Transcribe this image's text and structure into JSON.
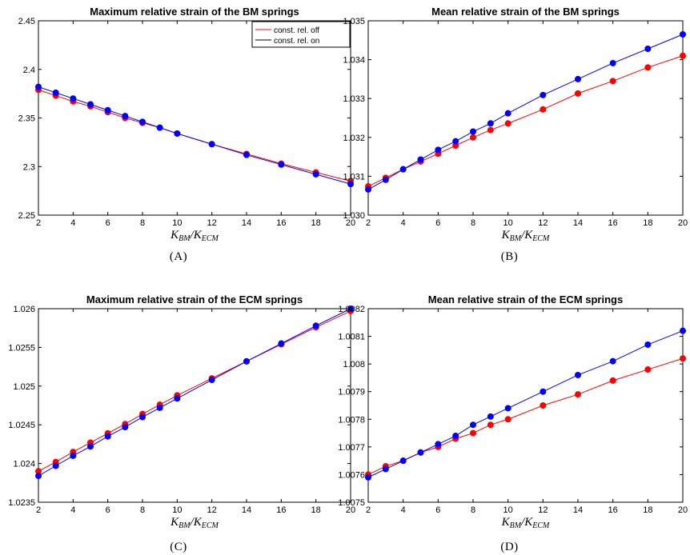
{
  "colors": {
    "off": "#ff0000",
    "on": "#0000ff",
    "legend_on_line": "#000000"
  },
  "chart_data": [
    {
      "type": "line",
      "caption": "(A)",
      "title": "Maximum relative strain of the BM springs",
      "xlabel": "K_BM/K_ECM",
      "x": [
        2,
        3,
        4,
        5,
        6,
        7,
        8,
        9,
        10,
        12,
        14,
        16,
        18,
        20
      ],
      "xlim": [
        2,
        20
      ],
      "ylim": [
        2.25,
        2.45
      ],
      "xticks": [
        "2",
        "4",
        "6",
        "8",
        "10",
        "12",
        "14",
        "16",
        "18",
        "20"
      ],
      "yticks": [
        "2.25",
        "2.3",
        "2.35",
        "2.4",
        "2.45"
      ],
      "legend": {
        "position": "top-right",
        "entries": [
          "const. rel. off",
          "const. rel. on"
        ]
      },
      "series": [
        {
          "name": "const. rel. off",
          "color": "#ff0000",
          "values": [
            2.379,
            2.373,
            2.367,
            2.362,
            2.356,
            2.35,
            2.345,
            2.34,
            2.334,
            2.323,
            2.313,
            2.303,
            2.294,
            2.285
          ]
        },
        {
          "name": "const. rel. on",
          "color": "#0000ff",
          "values": [
            2.382,
            2.376,
            2.37,
            2.364,
            2.358,
            2.352,
            2.346,
            2.34,
            2.334,
            2.323,
            2.312,
            2.302,
            2.292,
            2.282
          ]
        }
      ]
    },
    {
      "type": "line",
      "caption": "(B)",
      "title": "Mean relative strain of the BM springs",
      "xlabel": "K_BM/K_ECM",
      "x": [
        2,
        3,
        4,
        5,
        6,
        7,
        8,
        9,
        10,
        12,
        14,
        16,
        18,
        20
      ],
      "xlim": [
        2,
        20
      ],
      "ylim": [
        1.03,
        1.035
      ],
      "xticks": [
        "2",
        "4",
        "6",
        "8",
        "10",
        "12",
        "14",
        "16",
        "18",
        "20"
      ],
      "yticks": [
        "1.030",
        "1.031",
        "1.032",
        "1.033",
        "1.034",
        "1.035"
      ],
      "series": [
        {
          "name": "const. rel. off",
          "color": "#ff0000",
          "values": [
            1.03074,
            1.03096,
            1.03118,
            1.03138,
            1.03158,
            1.03179,
            1.032,
            1.03219,
            1.03236,
            1.03272,
            1.03313,
            1.03345,
            1.0338,
            1.0341
          ]
        },
        {
          "name": "const. rel. on",
          "color": "#0000ff",
          "values": [
            1.03066,
            1.03091,
            1.03118,
            1.03143,
            1.03168,
            1.0319,
            1.03215,
            1.03236,
            1.03262,
            1.03309,
            1.0335,
            1.03391,
            1.03428,
            1.03465
          ]
        }
      ]
    },
    {
      "type": "line",
      "caption": "(C)",
      "title": "Maximum relative strain of the ECM springs",
      "xlabel": "K_BM/K_ECM",
      "x": [
        2,
        3,
        4,
        5,
        6,
        7,
        8,
        9,
        10,
        12,
        14,
        16,
        18,
        20
      ],
      "xlim": [
        2,
        20
      ],
      "ylim": [
        1.0235,
        1.026
      ],
      "xticks": [
        "2",
        "4",
        "6",
        "8",
        "10",
        "12",
        "14",
        "16",
        "18",
        "20"
      ],
      "yticks": [
        "1.0235",
        "1.024",
        "1.0245",
        "1.025",
        "1.0255",
        "1.026"
      ],
      "series": [
        {
          "name": "const. rel. off",
          "color": "#ff0000",
          "values": [
            1.0239,
            1.02402,
            1.02415,
            1.02427,
            1.02439,
            1.02451,
            1.02464,
            1.02476,
            1.02488,
            1.0251,
            1.02532,
            1.02554,
            1.02576,
            1.02597
          ]
        },
        {
          "name": "const. rel. on",
          "color": "#0000ff",
          "values": [
            1.02384,
            1.02397,
            1.0241,
            1.02422,
            1.02435,
            1.02447,
            1.0246,
            1.02472,
            1.02484,
            1.02508,
            1.02532,
            1.02555,
            1.02578,
            1.026
          ]
        }
      ]
    },
    {
      "type": "line",
      "caption": "(D)",
      "title": "Mean relative strain of the ECM springs",
      "xlabel": "K_BM/K_ECM",
      "x": [
        2,
        3,
        4,
        5,
        6,
        7,
        8,
        9,
        10,
        12,
        14,
        16,
        18,
        20
      ],
      "xlim": [
        2,
        20
      ],
      "ylim": [
        1.0075,
        1.0082
      ],
      "xticks": [
        "2",
        "4",
        "6",
        "8",
        "10",
        "12",
        "14",
        "16",
        "18",
        "20"
      ],
      "yticks": [
        "1.0075",
        "1.0076",
        "1.0077",
        "1.0078",
        "1.0079",
        "1.008",
        "1.0081",
        "1.0082"
      ],
      "series": [
        {
          "name": "const. rel. off",
          "color": "#ff0000",
          "values": [
            1.0076,
            1.00763,
            1.00765,
            1.00768,
            1.0077,
            1.00773,
            1.00775,
            1.00778,
            1.0078,
            1.00785,
            1.00789,
            1.00794,
            1.00798,
            1.00802
          ]
        },
        {
          "name": "const. rel. on",
          "color": "#0000ff",
          "values": [
            1.00759,
            1.00762,
            1.00765,
            1.00768,
            1.00771,
            1.00774,
            1.00778,
            1.00781,
            1.00784,
            1.0079,
            1.00796,
            1.00801,
            1.00807,
            1.00812
          ]
        }
      ]
    }
  ]
}
